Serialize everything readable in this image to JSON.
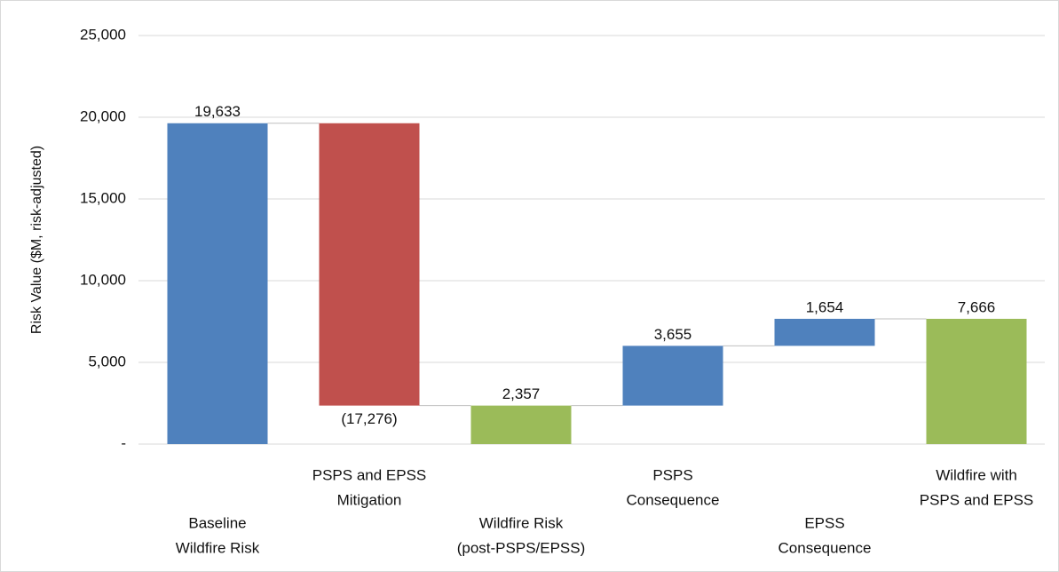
{
  "chart_data": {
    "type": "waterfall",
    "y_label": "Risk Value ($M, risk-adjusted)",
    "categories": [
      [
        "Baseline",
        "Wildfire Risk"
      ],
      [
        "PSPS and EPSS",
        "Mitigation"
      ],
      [
        "Wildfire Risk",
        "(post-PSPS/EPSS)"
      ],
      [
        "PSPS",
        "Consequence"
      ],
      [
        "EPSS",
        "Consequence"
      ],
      [
        "Wildfire with",
        "PSPS and EPSS"
      ]
    ],
    "values": [
      19633,
      -17276,
      2357,
      3655,
      1654,
      7666
    ],
    "value_labels": [
      "19,633",
      "(17,276)",
      "2,357",
      "3,655",
      "1,654",
      "7,666"
    ],
    "bar_kinds": [
      "total",
      "delta",
      "total",
      "delta",
      "delta",
      "total"
    ],
    "colors": [
      "#4f81bd",
      "#c0504d",
      "#9bbb59",
      "#4f81bd",
      "#4f81bd",
      "#9bbb59"
    ],
    "ylim": [
      0,
      25000
    ],
    "yticks": [
      {
        "value": 0,
        "label": "-"
      },
      {
        "value": 5000,
        "label": "5,000"
      },
      {
        "value": 10000,
        "label": "10,000"
      },
      {
        "value": 15000,
        "label": "15,000"
      },
      {
        "value": 20000,
        "label": "20,000"
      },
      {
        "value": 25000,
        "label": "25,000"
      }
    ],
    "grid": true
  }
}
